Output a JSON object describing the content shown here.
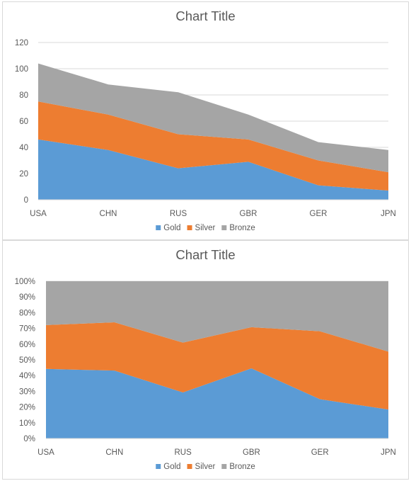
{
  "chart_data": [
    {
      "type": "area",
      "stacking": "normal",
      "title": "Chart Title",
      "categories": [
        "USA",
        "CHN",
        "RUS",
        "GBR",
        "GER",
        "JPN"
      ],
      "series": [
        {
          "name": "Gold",
          "values": [
            46,
            38,
            24,
            29,
            11,
            7
          ],
          "color": "#5b9bd5"
        },
        {
          "name": "Silver",
          "values": [
            29,
            27,
            26,
            17,
            19,
            14
          ],
          "color": "#ed7d31"
        },
        {
          "name": "Bronze",
          "values": [
            29,
            23,
            32,
            19,
            14,
            17
          ],
          "color": "#a5a5a5"
        }
      ],
      "ylim": [
        0,
        120
      ],
      "yticks": [
        "0",
        "20",
        "40",
        "60",
        "80",
        "100",
        "120"
      ],
      "grid": true,
      "legend": "bottom"
    },
    {
      "type": "area",
      "stacking": "percent",
      "title": "Chart Title",
      "categories": [
        "USA",
        "CHN",
        "RUS",
        "GBR",
        "GER",
        "JPN"
      ],
      "series": [
        {
          "name": "Gold",
          "values": [
            46,
            38,
            24,
            29,
            11,
            7
          ],
          "color": "#5b9bd5"
        },
        {
          "name": "Silver",
          "values": [
            29,
            27,
            26,
            17,
            19,
            14
          ],
          "color": "#ed7d31"
        },
        {
          "name": "Bronze",
          "values": [
            29,
            23,
            32,
            19,
            14,
            17
          ],
          "color": "#a5a5a5"
        }
      ],
      "ylim": [
        0,
        100
      ],
      "yticks": [
        "0%",
        "10%",
        "20%",
        "30%",
        "40%",
        "50%",
        "60%",
        "70%",
        "80%",
        "90%",
        "100%"
      ],
      "grid": true,
      "legend": "bottom"
    }
  ]
}
